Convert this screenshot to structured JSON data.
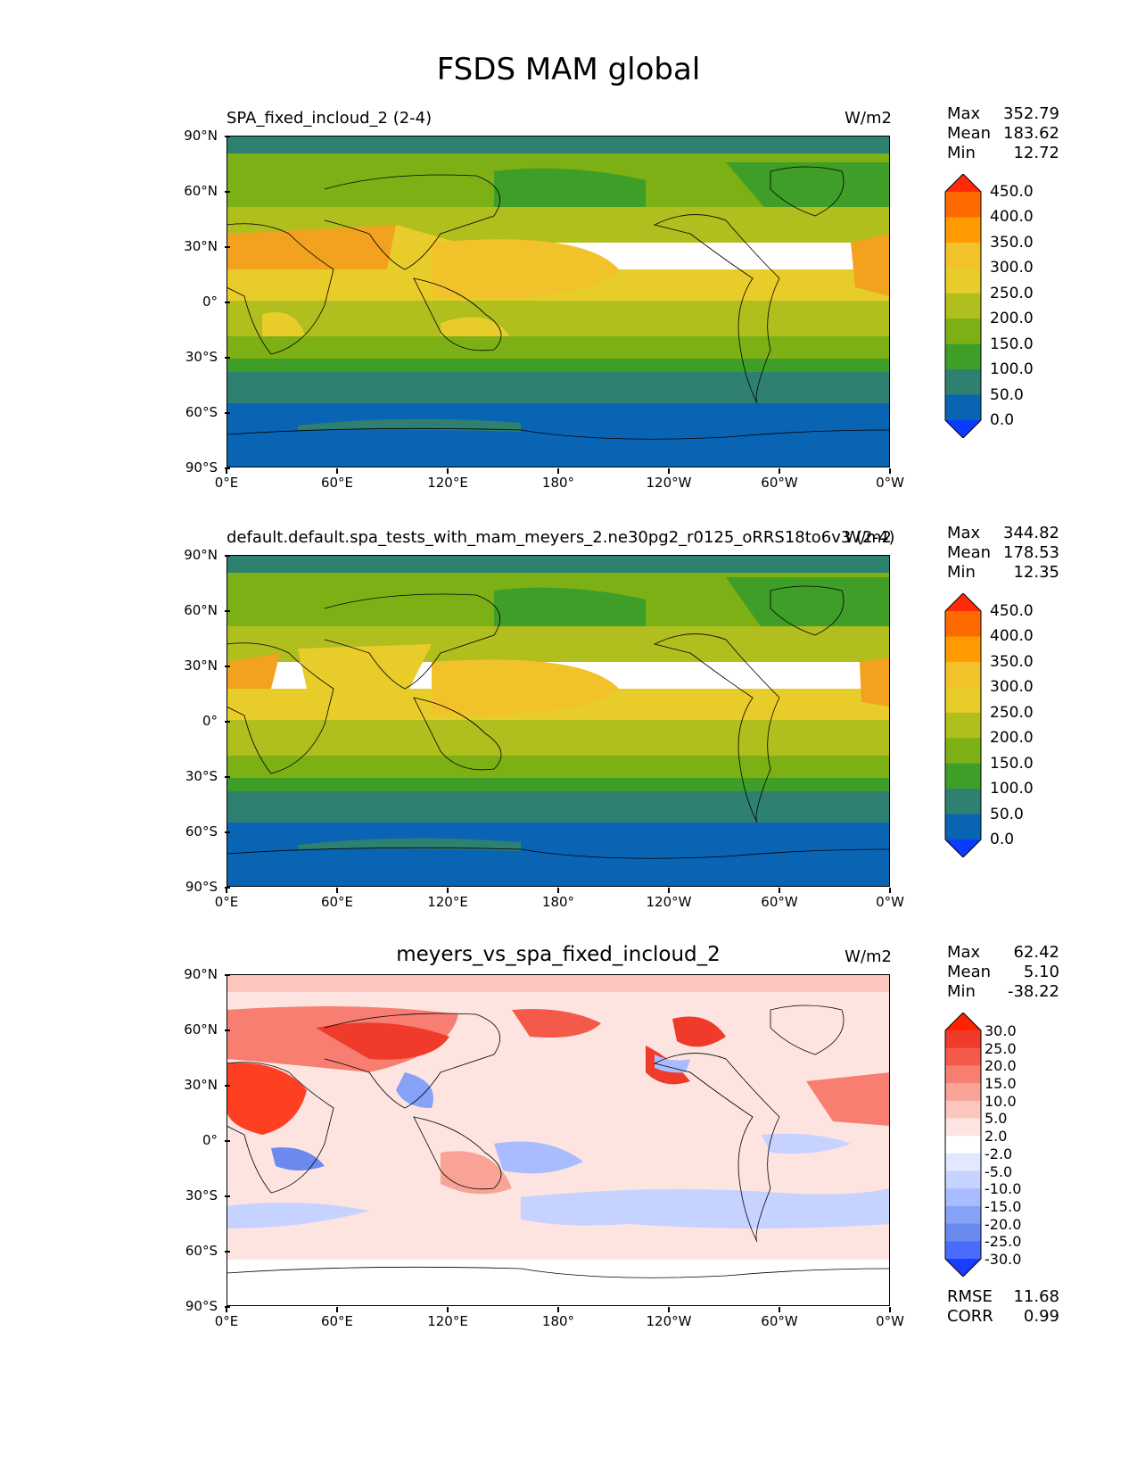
{
  "figure": {
    "title": "FSDS MAM global"
  },
  "chart_data": [
    {
      "type": "heatmap",
      "title": "SPA_fixed_incloud_2 (2-4)",
      "units": "W/m2",
      "xlabel": "",
      "ylabel": "",
      "x_tick_labels": [
        "0°E",
        "60°E",
        "120°E",
        "180°",
        "120°W",
        "60°W",
        "0°W"
      ],
      "y_tick_labels": [
        "90°N",
        "60°N",
        "30°N",
        "0°",
        "30°S",
        "60°S",
        "90°S"
      ],
      "stats": {
        "max_label": "Max",
        "max": "352.79",
        "mean_label": "Mean",
        "mean": "183.62",
        "min_label": "Min",
        "min": "12.72"
      },
      "colorbar": {
        "levels": [
          "450.0",
          "400.0",
          "350.0",
          "300.0",
          "250.0",
          "200.0",
          "150.0",
          "100.0",
          "50.0",
          "0.0"
        ],
        "colors": [
          "#ff2a0a",
          "#ff6a00",
          "#ff9a00",
          "#f2c22a",
          "#e8cc2a",
          "#b0be1e",
          "#7cb014",
          "#3e9e28",
          "#2e8070",
          "#0a64b4",
          "#0a3cff"
        ]
      }
    },
    {
      "type": "heatmap",
      "title": "default.default.spa_tests_with_mam_meyers_2.ne30pg2_r0125_oRRS18to6v3 (2-4)",
      "units": "W/m2",
      "xlabel": "",
      "ylabel": "",
      "x_tick_labels": [
        "0°E",
        "60°E",
        "120°E",
        "180°",
        "120°W",
        "60°W",
        "0°W"
      ],
      "y_tick_labels": [
        "90°N",
        "60°N",
        "30°N",
        "0°",
        "30°S",
        "60°S",
        "90°S"
      ],
      "stats": {
        "max_label": "Max",
        "max": "344.82",
        "mean_label": "Mean",
        "mean": "178.53",
        "min_label": "Min",
        "min": "12.35"
      },
      "colorbar": {
        "levels": [
          "450.0",
          "400.0",
          "350.0",
          "300.0",
          "250.0",
          "200.0",
          "150.0",
          "100.0",
          "50.0",
          "0.0"
        ],
        "colors": [
          "#ff2a0a",
          "#ff6a00",
          "#ff9a00",
          "#f2c22a",
          "#e8cc2a",
          "#b0be1e",
          "#7cb014",
          "#3e9e28",
          "#2e8070",
          "#0a64b4",
          "#0a3cff"
        ]
      }
    },
    {
      "type": "heatmap",
      "title": "meyers_vs_spa_fixed_incloud_2",
      "units": "W/m2",
      "xlabel": "",
      "ylabel": "",
      "x_tick_labels": [
        "0°E",
        "60°E",
        "120°E",
        "180°",
        "120°W",
        "60°W",
        "0°W"
      ],
      "y_tick_labels": [
        "90°N",
        "60°N",
        "30°N",
        "0°",
        "30°S",
        "60°S",
        "90°S"
      ],
      "stats": {
        "max_label": "Max",
        "max": "62.42",
        "mean_label": "Mean",
        "mean": "5.10",
        "min_label": "Min",
        "min": "-38.22"
      },
      "extra_stats": {
        "rmse_label": "RMSE",
        "rmse": "11.68",
        "corr_label": "CORR",
        "corr": "0.99"
      },
      "colorbar": {
        "levels": [
          "30.0",
          "25.0",
          "20.0",
          "15.0",
          "10.0",
          "5.0",
          "2.0",
          "-2.0",
          "-5.0",
          "-10.0",
          "-15.0",
          "-20.0",
          "-25.0",
          "-30.0"
        ],
        "colors": [
          "#ff2200",
          "#f03a2a",
          "#f45a4a",
          "#f77e70",
          "#f9a296",
          "#fbc6bd",
          "#fde4e0",
          "#ffffff",
          "#e2e8ff",
          "#c6d2ff",
          "#a8bcff",
          "#86a2f6",
          "#6a8af0",
          "#4a6cff",
          "#1a3cff"
        ]
      }
    }
  ]
}
